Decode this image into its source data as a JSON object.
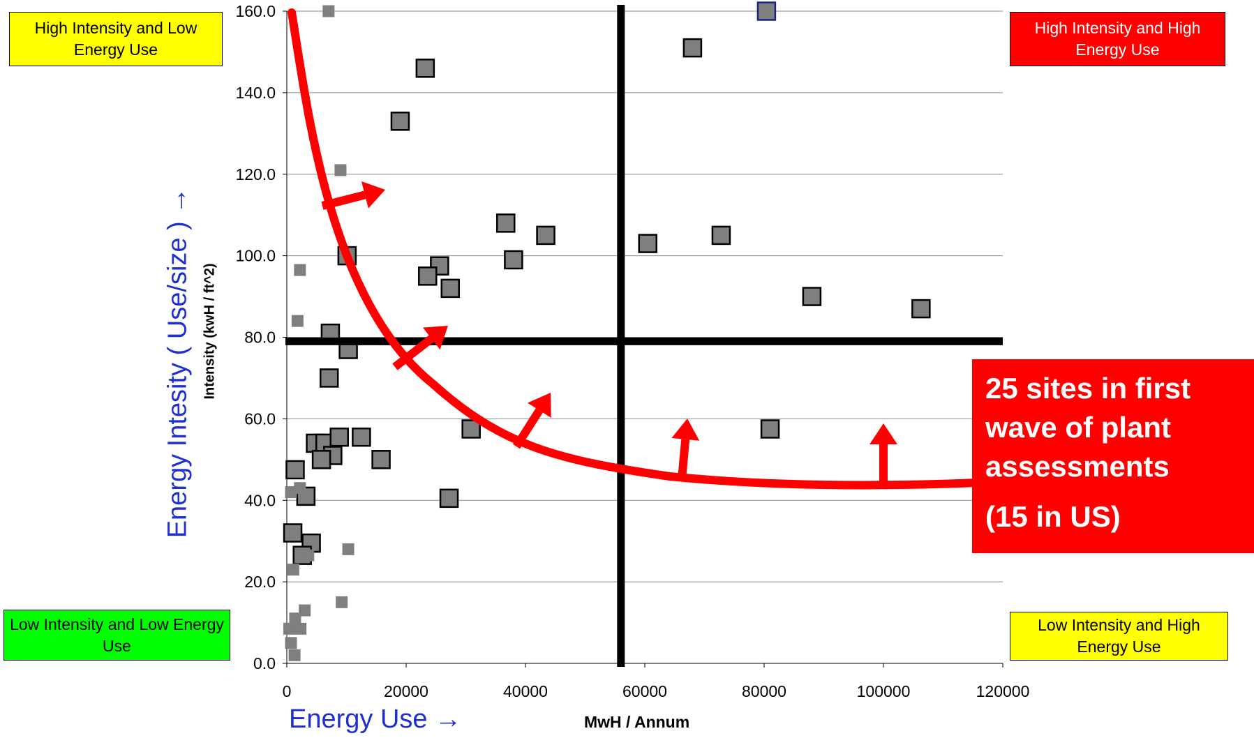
{
  "chart_data": {
    "type": "scatter",
    "title": "",
    "xlabel": "MwH / Annum",
    "ylabel": "Intensity (kwH / ft^2)",
    "xlim": [
      0,
      120000
    ],
    "ylim": [
      0,
      160
    ],
    "x_ticks": [
      "0",
      "20000",
      "40000",
      "60000",
      "80000",
      "100000",
      "120000"
    ],
    "y_ticks": [
      "0.0",
      "20.0",
      "40.0",
      "60.0",
      "80.0",
      "100.0",
      "120.0",
      "140.0",
      "160.0"
    ],
    "grid": "horizontal",
    "threshold_x": 56000,
    "threshold_y": 79,
    "series": [
      {
        "marker": "large-square",
        "points": [
          [
            23200,
            146
          ],
          [
            19000,
            133
          ],
          [
            68000,
            151
          ],
          [
            80400,
            160
          ],
          [
            36700,
            108
          ],
          [
            43400,
            105
          ],
          [
            60500,
            103
          ],
          [
            72800,
            105
          ],
          [
            10100,
            100
          ],
          [
            38000,
            99
          ],
          [
            25600,
            97.5
          ],
          [
            23600,
            95
          ],
          [
            27400,
            92
          ],
          [
            88000,
            90
          ],
          [
            106300,
            87
          ],
          [
            7300,
            81
          ],
          [
            10300,
            77
          ],
          [
            7100,
            70
          ],
          [
            30900,
            57.5
          ],
          [
            81000,
            57.5
          ],
          [
            4800,
            54
          ],
          [
            6400,
            54
          ],
          [
            8800,
            55.5
          ],
          [
            12500,
            55.5
          ],
          [
            7700,
            51
          ],
          [
            5800,
            50
          ],
          [
            15800,
            50
          ],
          [
            1400,
            47.5
          ],
          [
            3200,
            41
          ],
          [
            27200,
            40.5
          ],
          [
            1000,
            32
          ],
          [
            4100,
            29.5
          ],
          [
            2600,
            26.5
          ]
        ]
      },
      {
        "marker": "small-square",
        "points": [
          [
            7000,
            160
          ],
          [
            9000,
            121
          ],
          [
            2200,
            96.5
          ],
          [
            1800,
            84
          ],
          [
            700,
            42
          ],
          [
            2200,
            43
          ],
          [
            3600,
            26.5
          ],
          [
            10300,
            28
          ],
          [
            1100,
            23
          ],
          [
            9200,
            15
          ],
          [
            3000,
            13
          ],
          [
            1400,
            11
          ],
          [
            400,
            8.5
          ],
          [
            2300,
            8.5
          ],
          [
            700,
            5
          ],
          [
            1300,
            2
          ]
        ]
      }
    ]
  },
  "quadrants": {
    "high_intensity_low_energy": "High Intensity and Low Energy Use",
    "high_intensity_high_energy": "High Intensity and High Energy Use",
    "low_intensity_low_energy": "Low Intensity and Low Energy Use",
    "low_intensity_high_energy": "Low Intensity and High Energy Use"
  },
  "axis_titles": {
    "y_concept": "Energy Intesity ( Use/size ) →",
    "x_concept": "Energy Use →"
  },
  "callout": {
    "line1": "25 sites in first wave of plant assessments",
    "line2": "(15 in US)"
  },
  "colors": {
    "quadrant_yellow": "#ffff00",
    "quadrant_red": "#ff0000",
    "quadrant_green": "#00ff00",
    "curve_red": "#ff0000",
    "marker_fill": "#7f7f7f",
    "concept_blue": "#1f2fd0"
  }
}
